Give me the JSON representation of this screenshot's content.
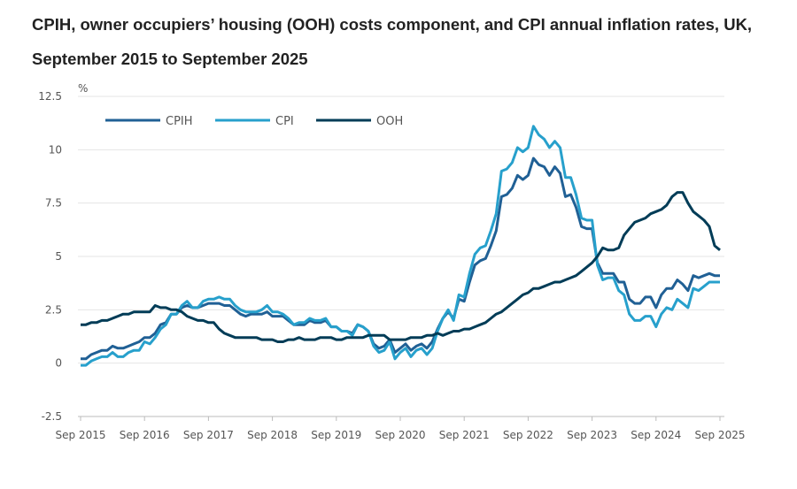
{
  "chart_data": {
    "type": "line",
    "title": "CPIH, owner occupiers’ housing (OOH) costs component, and CPI annual inflation rates, UK, September 2015 to September 2025",
    "ylabel": "%",
    "xlabel": "",
    "ylim": [
      -2.5,
      12.5
    ],
    "yticks": [
      "12.5",
      "10",
      "7.5",
      "5",
      "2.5",
      "0",
      "-2.5"
    ],
    "ytick_values": [
      12.5,
      10,
      7.5,
      5,
      2.5,
      0,
      -2.5
    ],
    "xticks": [
      "Sep 2015",
      "Sep 2016",
      "Sep 2017",
      "Sep 2018",
      "Sep 2019",
      "Sep 2020",
      "Sep 2021",
      "Sep 2022",
      "Sep 2023",
      "Sep 2024",
      "Sep 2025"
    ],
    "x_start": "Sep 2015",
    "x_frequency": "monthly",
    "grid": true,
    "legend_position": "top-left",
    "series": [
      {
        "name": "CPIH",
        "color": "#206095",
        "values": [
          0.2,
          0.2,
          0.4,
          0.5,
          0.6,
          0.6,
          0.8,
          0.7,
          0.7,
          0.8,
          0.9,
          1.0,
          1.2,
          1.2,
          1.4,
          1.8,
          1.9,
          2.3,
          2.3,
          2.6,
          2.7,
          2.6,
          2.6,
          2.7,
          2.8,
          2.8,
          2.8,
          2.7,
          2.7,
          2.5,
          2.3,
          2.2,
          2.3,
          2.3,
          2.3,
          2.4,
          2.2,
          2.2,
          2.2,
          2.0,
          1.8,
          1.8,
          1.8,
          2.0,
          1.9,
          1.9,
          2.0,
          1.7,
          1.7,
          1.5,
          1.5,
          1.4,
          1.8,
          1.7,
          1.5,
          0.9,
          0.7,
          0.8,
          1.1,
          0.5,
          0.7,
          0.9,
          0.6,
          0.8,
          0.9,
          0.7,
          1.0,
          1.6,
          2.1,
          2.4,
          2.1,
          3.0,
          2.9,
          3.8,
          4.6,
          4.8,
          4.9,
          5.5,
          6.2,
          7.8,
          7.9,
          8.2,
          8.8,
          8.6,
          8.8,
          9.6,
          9.3,
          9.2,
          8.8,
          9.2,
          8.9,
          7.8,
          7.9,
          7.3,
          6.4,
          6.3,
          6.3,
          4.7,
          4.2,
          4.2,
          4.2,
          3.8,
          3.8,
          3.0,
          2.8,
          2.8,
          3.1,
          3.1,
          2.6,
          3.2,
          3.5,
          3.5,
          3.9,
          3.7,
          3.4,
          4.1,
          4.0,
          4.1,
          4.2,
          4.1,
          4.1
        ]
      },
      {
        "name": "CPI",
        "color": "#27a0cc",
        "values": [
          -0.1,
          -0.1,
          0.1,
          0.2,
          0.3,
          0.3,
          0.5,
          0.3,
          0.3,
          0.5,
          0.6,
          0.6,
          1.0,
          0.9,
          1.2,
          1.6,
          1.8,
          2.3,
          2.3,
          2.7,
          2.9,
          2.6,
          2.6,
          2.9,
          3.0,
          3.0,
          3.1,
          3.0,
          3.0,
          2.7,
          2.5,
          2.4,
          2.4,
          2.4,
          2.5,
          2.7,
          2.4,
          2.4,
          2.3,
          2.1,
          1.8,
          1.9,
          1.9,
          2.1,
          2.0,
          2.0,
          2.1,
          1.7,
          1.7,
          1.5,
          1.5,
          1.3,
          1.8,
          1.7,
          1.5,
          0.8,
          0.5,
          0.6,
          1.0,
          0.2,
          0.5,
          0.7,
          0.3,
          0.6,
          0.7,
          0.4,
          0.7,
          1.5,
          2.1,
          2.5,
          2.0,
          3.2,
          3.1,
          4.2,
          5.1,
          5.4,
          5.5,
          6.2,
          7.0,
          9.0,
          9.1,
          9.4,
          10.1,
          9.9,
          10.1,
          11.1,
          10.7,
          10.5,
          10.1,
          10.4,
          10.1,
          8.7,
          8.7,
          7.9,
          6.8,
          6.7,
          6.7,
          4.6,
          3.9,
          4.0,
          4.0,
          3.4,
          3.2,
          2.3,
          2.0,
          2.0,
          2.2,
          2.2,
          1.7,
          2.3,
          2.6,
          2.5,
          3.0,
          2.8,
          2.6,
          3.5,
          3.4,
          3.6,
          3.8,
          3.8,
          3.8
        ]
      },
      {
        "name": "OOH",
        "color": "#003c57",
        "values": [
          1.8,
          1.8,
          1.9,
          1.9,
          2.0,
          2.0,
          2.1,
          2.2,
          2.3,
          2.3,
          2.4,
          2.4,
          2.4,
          2.4,
          2.7,
          2.6,
          2.6,
          2.5,
          2.5,
          2.4,
          2.2,
          2.1,
          2.0,
          2.0,
          1.9,
          1.9,
          1.6,
          1.4,
          1.3,
          1.2,
          1.2,
          1.2,
          1.2,
          1.2,
          1.1,
          1.1,
          1.1,
          1.0,
          1.0,
          1.1,
          1.1,
          1.2,
          1.1,
          1.1,
          1.1,
          1.2,
          1.2,
          1.2,
          1.1,
          1.1,
          1.2,
          1.2,
          1.2,
          1.2,
          1.3,
          1.3,
          1.3,
          1.3,
          1.1,
          1.1,
          1.1,
          1.1,
          1.2,
          1.2,
          1.2,
          1.3,
          1.3,
          1.4,
          1.3,
          1.4,
          1.5,
          1.5,
          1.6,
          1.6,
          1.7,
          1.8,
          1.9,
          2.1,
          2.3,
          2.4,
          2.6,
          2.8,
          3.0,
          3.2,
          3.3,
          3.5,
          3.5,
          3.6,
          3.7,
          3.8,
          3.8,
          3.9,
          4.0,
          4.1,
          4.3,
          4.5,
          4.7,
          5.0,
          5.4,
          5.3,
          5.3,
          5.4,
          6.0,
          6.3,
          6.6,
          6.7,
          6.8,
          7.0,
          7.1,
          7.2,
          7.4,
          7.8,
          8.0,
          8.0,
          7.5,
          7.1,
          6.9,
          6.7,
          6.4,
          5.5,
          5.3
        ]
      }
    ]
  }
}
